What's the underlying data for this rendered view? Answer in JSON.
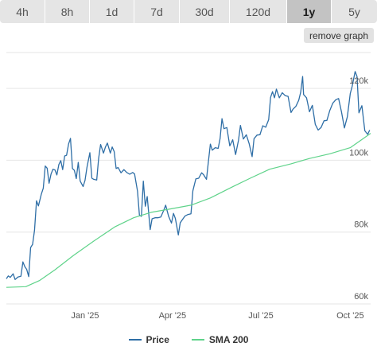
{
  "toolbar": {
    "ranges": [
      "4h",
      "8h",
      "1d",
      "7d",
      "30d",
      "120d",
      "1y",
      "5y"
    ],
    "active": "1y",
    "remove_label": "remove graph"
  },
  "colors": {
    "price": "#2e6ea6",
    "sma": "#5fd38a",
    "grid": "#e6e6e6",
    "axis_text": "#555555"
  },
  "chart_data": {
    "type": "line",
    "x_ticks": [
      "Jan '25",
      "Apr '25",
      "Jul '25",
      "Oct '25"
    ],
    "y_ticks": [
      "60k",
      "80k",
      "100k",
      "120k"
    ],
    "ylim": [
      60000,
      130000
    ],
    "x_range": [
      "2024-10-12",
      "2025-10-22"
    ],
    "grid": true,
    "legend": "bottom",
    "series": [
      {
        "name": "Price",
        "points": [
          [
            "2024-10-12",
            67000
          ],
          [
            "2024-10-14",
            67800
          ],
          [
            "2024-10-16",
            67400
          ],
          [
            "2024-10-19",
            68400
          ],
          [
            "2024-10-21",
            66800
          ],
          [
            "2024-10-24",
            67500
          ],
          [
            "2024-10-27",
            67700
          ],
          [
            "2024-10-29",
            71700
          ],
          [
            "2024-10-31",
            70400
          ],
          [
            "2024-11-02",
            69600
          ],
          [
            "2024-11-04",
            67600
          ],
          [
            "2024-11-06",
            75700
          ],
          [
            "2024-11-08",
            76600
          ],
          [
            "2024-11-10",
            80500
          ],
          [
            "2024-11-12",
            88700
          ],
          [
            "2024-11-14",
            87300
          ],
          [
            "2024-11-17",
            90600
          ],
          [
            "2024-11-19",
            92200
          ],
          [
            "2024-11-21",
            98400
          ],
          [
            "2024-11-23",
            97800
          ],
          [
            "2024-11-25",
            93600
          ],
          [
            "2024-11-27",
            96200
          ],
          [
            "2024-11-29",
            97500
          ],
          [
            "2024-12-01",
            97300
          ],
          [
            "2024-12-03",
            95900
          ],
          [
            "2024-12-05",
            98800
          ],
          [
            "2024-12-07",
            99900
          ],
          [
            "2024-12-09",
            97400
          ],
          [
            "2024-12-11",
            101200
          ],
          [
            "2024-12-13",
            101400
          ],
          [
            "2024-12-15",
            104500
          ],
          [
            "2024-12-17",
            106100
          ],
          [
            "2024-12-19",
            97700
          ],
          [
            "2024-12-21",
            97200
          ],
          [
            "2024-12-23",
            94900
          ],
          [
            "2024-12-25",
            99400
          ],
          [
            "2024-12-27",
            94200
          ],
          [
            "2024-12-30",
            92700
          ],
          [
            "2025-01-01",
            94400
          ],
          [
            "2025-01-03",
            98100
          ],
          [
            "2025-01-06",
            102100
          ],
          [
            "2025-01-08",
            95000
          ],
          [
            "2025-01-10",
            94700
          ],
          [
            "2025-01-13",
            94500
          ],
          [
            "2025-01-15",
            100500
          ],
          [
            "2025-01-17",
            104400
          ],
          [
            "2025-01-20",
            102000
          ],
          [
            "2025-01-22",
            103700
          ],
          [
            "2025-01-24",
            104800
          ],
          [
            "2025-01-27",
            102000
          ],
          [
            "2025-01-29",
            103700
          ],
          [
            "2025-01-31",
            102400
          ],
          [
            "2025-02-02",
            97700
          ],
          [
            "2025-02-04",
            98000
          ],
          [
            "2025-02-07",
            96500
          ],
          [
            "2025-02-10",
            97400
          ],
          [
            "2025-02-13",
            96600
          ],
          [
            "2025-02-16",
            96100
          ],
          [
            "2025-02-19",
            96600
          ],
          [
            "2025-02-21",
            96200
          ],
          [
            "2025-02-24",
            91400
          ],
          [
            "2025-02-26",
            84700
          ],
          [
            "2025-02-28",
            84400
          ],
          [
            "2025-03-02",
            94200
          ],
          [
            "2025-03-04",
            87200
          ],
          [
            "2025-03-06",
            89900
          ],
          [
            "2025-03-09",
            80700
          ],
          [
            "2025-03-11",
            83700
          ],
          [
            "2025-03-14",
            84000
          ],
          [
            "2025-03-17",
            84000
          ],
          [
            "2025-03-20",
            84200
          ],
          [
            "2025-03-23",
            86100
          ],
          [
            "2025-03-25",
            87500
          ],
          [
            "2025-03-28",
            84400
          ],
          [
            "2025-03-31",
            82500
          ],
          [
            "2025-04-02",
            85200
          ],
          [
            "2025-04-04",
            83800
          ],
          [
            "2025-04-07",
            79200
          ],
          [
            "2025-04-09",
            82600
          ],
          [
            "2025-04-11",
            83400
          ],
          [
            "2025-04-14",
            84500
          ],
          [
            "2025-04-17",
            84900
          ],
          [
            "2025-04-20",
            85100
          ],
          [
            "2025-04-22",
            91500
          ],
          [
            "2025-04-25",
            94800
          ],
          [
            "2025-04-28",
            95000
          ],
          [
            "2025-05-01",
            96500
          ],
          [
            "2025-05-03",
            96000
          ],
          [
            "2025-05-06",
            94700
          ],
          [
            "2025-05-08",
            99600
          ],
          [
            "2025-05-10",
            104500
          ],
          [
            "2025-05-12",
            102800
          ],
          [
            "2025-05-15",
            103500
          ],
          [
            "2025-05-18",
            103300
          ],
          [
            "2025-05-20",
            106000
          ],
          [
            "2025-05-22",
            111600
          ],
          [
            "2025-05-24",
            108800
          ],
          [
            "2025-05-27",
            109100
          ],
          [
            "2025-05-30",
            104000
          ],
          [
            "2025-06-02",
            105700
          ],
          [
            "2025-06-05",
            101600
          ],
          [
            "2025-06-08",
            105600
          ],
          [
            "2025-06-10",
            109700
          ],
          [
            "2025-06-13",
            105900
          ],
          [
            "2025-06-16",
            107100
          ],
          [
            "2025-06-19",
            104600
          ],
          [
            "2025-06-22",
            101000
          ],
          [
            "2025-06-24",
            106000
          ],
          [
            "2025-06-27",
            107000
          ],
          [
            "2025-06-30",
            107100
          ],
          [
            "2025-07-03",
            109600
          ],
          [
            "2025-07-06",
            109200
          ],
          [
            "2025-07-09",
            111300
          ],
          [
            "2025-07-11",
            117500
          ],
          [
            "2025-07-13",
            119100
          ],
          [
            "2025-07-15",
            117400
          ],
          [
            "2025-07-17",
            119800
          ],
          [
            "2025-07-20",
            117400
          ],
          [
            "2025-07-23",
            118800
          ],
          [
            "2025-07-26",
            118000
          ],
          [
            "2025-07-29",
            117800
          ],
          [
            "2025-08-01",
            113300
          ],
          [
            "2025-08-03",
            114200
          ],
          [
            "2025-08-06",
            115000
          ],
          [
            "2025-08-09",
            116700
          ],
          [
            "2025-08-11",
            119000
          ],
          [
            "2025-08-13",
            123300
          ],
          [
            "2025-08-14",
            118300
          ],
          [
            "2025-08-17",
            117400
          ],
          [
            "2025-08-20",
            113500
          ],
          [
            "2025-08-23",
            115300
          ],
          [
            "2025-08-26",
            110000
          ],
          [
            "2025-08-29",
            108400
          ],
          [
            "2025-09-01",
            109100
          ],
          [
            "2025-09-04",
            111000
          ],
          [
            "2025-09-07",
            111100
          ],
          [
            "2025-09-10",
            113900
          ],
          [
            "2025-09-13",
            115900
          ],
          [
            "2025-09-16",
            116800
          ],
          [
            "2025-09-19",
            117200
          ],
          [
            "2025-09-22",
            113400
          ],
          [
            "2025-09-25",
            109000
          ],
          [
            "2025-09-28",
            112100
          ],
          [
            "2025-10-01",
            118600
          ],
          [
            "2025-10-03",
            120600
          ],
          [
            "2025-10-06",
            124700
          ],
          [
            "2025-10-08",
            123300
          ],
          [
            "2025-10-10",
            113200
          ],
          [
            "2025-10-13",
            115200
          ],
          [
            "2025-10-16",
            108200
          ],
          [
            "2025-10-19",
            107200
          ],
          [
            "2025-10-21",
            108400
          ]
        ]
      },
      {
        "name": "SMA 200",
        "points": [
          [
            "2024-10-12",
            64600
          ],
          [
            "2024-11-01",
            64800
          ],
          [
            "2024-11-15",
            66500
          ],
          [
            "2024-12-01",
            69500
          ],
          [
            "2024-12-20",
            73500
          ],
          [
            "2025-01-10",
            77500
          ],
          [
            "2025-02-01",
            81500
          ],
          [
            "2025-02-20",
            84000
          ],
          [
            "2025-03-10",
            85500
          ],
          [
            "2025-03-31",
            86500
          ],
          [
            "2025-04-20",
            87500
          ],
          [
            "2025-05-10",
            89500
          ],
          [
            "2025-06-01",
            92500
          ],
          [
            "2025-06-20",
            95000
          ],
          [
            "2025-07-10",
            97500
          ],
          [
            "2025-08-01",
            99000
          ],
          [
            "2025-08-20",
            100500
          ],
          [
            "2025-09-10",
            101800
          ],
          [
            "2025-10-01",
            103500
          ],
          [
            "2025-10-22",
            107500
          ]
        ]
      }
    ]
  }
}
